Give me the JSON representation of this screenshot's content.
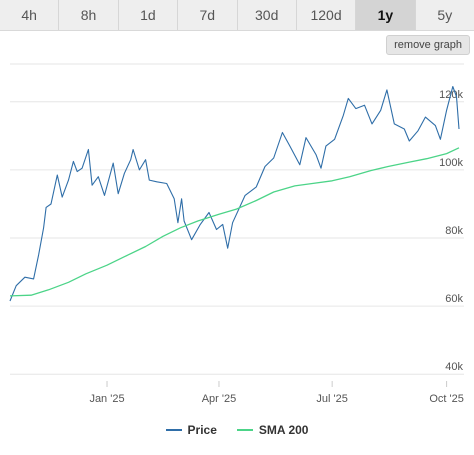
{
  "timeframe_tabs": [
    {
      "label": "4h",
      "active": false
    },
    {
      "label": "8h",
      "active": false
    },
    {
      "label": "1d",
      "active": false
    },
    {
      "label": "7d",
      "active": false
    },
    {
      "label": "30d",
      "active": false
    },
    {
      "label": "120d",
      "active": false
    },
    {
      "label": "1y",
      "active": true
    },
    {
      "label": "5y",
      "active": false
    }
  ],
  "remove_graph_label": "remove graph",
  "legend": {
    "price_label": "Price",
    "sma_label": "SMA 200"
  },
  "colors": {
    "price": "#2f6ea8",
    "sma": "#4cd488",
    "grid": "#e6e6e6",
    "axis_text": "#555555"
  },
  "chart_data": {
    "type": "line",
    "x_tick_labels": [
      "Jan '25",
      "Apr '25",
      "Jul '25",
      "Oct '25"
    ],
    "x_ticks": [
      "2025-01-01",
      "2025-04-01",
      "2025-07-01",
      "2025-10-01"
    ],
    "xlim": [
      "2024-10-15",
      "2025-10-15"
    ],
    "y_tick_labels": [
      "40k",
      "60k",
      "80k",
      "100k",
      "120k"
    ],
    "y_ticks": [
      40000,
      60000,
      80000,
      100000,
      120000
    ],
    "ylim": [
      38000,
      122000
    ],
    "grid": "horizontal",
    "legend_position": "bottom",
    "series": [
      {
        "name": "Price",
        "points": [
          [
            "2024-10-15",
            61500
          ],
          [
            "2024-10-20",
            66000
          ],
          [
            "2024-10-27",
            68500
          ],
          [
            "2024-11-03",
            68000
          ],
          [
            "2024-11-07",
            75000
          ],
          [
            "2024-11-11",
            83000
          ],
          [
            "2024-11-13",
            89000
          ],
          [
            "2024-11-17",
            90000
          ],
          [
            "2024-11-22",
            98500
          ],
          [
            "2024-11-26",
            92000
          ],
          [
            "2024-12-01",
            97000
          ],
          [
            "2024-12-05",
            102500
          ],
          [
            "2024-12-08",
            99500
          ],
          [
            "2024-12-12",
            100500
          ],
          [
            "2024-12-17",
            106000
          ],
          [
            "2024-12-20",
            95500
          ],
          [
            "2024-12-25",
            98000
          ],
          [
            "2024-12-30",
            92500
          ],
          [
            "2025-01-06",
            102000
          ],
          [
            "2025-01-10",
            93000
          ],
          [
            "2025-01-15",
            99000
          ],
          [
            "2025-01-20",
            103000
          ],
          [
            "2025-01-22",
            106000
          ],
          [
            "2025-01-27",
            100000
          ],
          [
            "2025-02-01",
            103000
          ],
          [
            "2025-02-04",
            97000
          ],
          [
            "2025-02-10",
            96500
          ],
          [
            "2025-02-18",
            96000
          ],
          [
            "2025-02-24",
            91500
          ],
          [
            "2025-02-27",
            84500
          ],
          [
            "2025-03-02",
            91500
          ],
          [
            "2025-03-04",
            85000
          ],
          [
            "2025-03-10",
            79500
          ],
          [
            "2025-03-17",
            84000
          ],
          [
            "2025-03-24",
            87500
          ],
          [
            "2025-03-30",
            82500
          ],
          [
            "2025-04-04",
            84000
          ],
          [
            "2025-04-08",
            77000
          ],
          [
            "2025-04-12",
            84500
          ],
          [
            "2025-04-22",
            92500
          ],
          [
            "2025-05-01",
            95000
          ],
          [
            "2025-05-08",
            101000
          ],
          [
            "2025-05-15",
            103500
          ],
          [
            "2025-05-22",
            111000
          ],
          [
            "2025-05-28",
            107000
          ],
          [
            "2025-06-05",
            101500
          ],
          [
            "2025-06-10",
            109500
          ],
          [
            "2025-06-18",
            104500
          ],
          [
            "2025-06-22",
            100500
          ],
          [
            "2025-06-26",
            107000
          ],
          [
            "2025-07-03",
            109000
          ],
          [
            "2025-07-10",
            116000
          ],
          [
            "2025-07-14",
            121000
          ],
          [
            "2025-07-20",
            118000
          ],
          [
            "2025-07-27",
            119000
          ],
          [
            "2025-08-02",
            113500
          ],
          [
            "2025-08-09",
            117500
          ],
          [
            "2025-08-14",
            123500
          ],
          [
            "2025-08-20",
            113500
          ],
          [
            "2025-08-28",
            112000
          ],
          [
            "2025-09-01",
            108500
          ],
          [
            "2025-09-08",
            111500
          ],
          [
            "2025-09-14",
            115500
          ],
          [
            "2025-09-22",
            113000
          ],
          [
            "2025-09-26",
            109000
          ],
          [
            "2025-10-01",
            117500
          ],
          [
            "2025-10-06",
            124500
          ],
          [
            "2025-10-09",
            121500
          ],
          [
            "2025-10-11",
            112000
          ]
        ]
      },
      {
        "name": "SMA 200",
        "points": [
          [
            "2024-10-15",
            63000
          ],
          [
            "2024-11-01",
            63200
          ],
          [
            "2024-11-15",
            64800
          ],
          [
            "2024-12-01",
            67000
          ],
          [
            "2024-12-15",
            69500
          ],
          [
            "2025-01-01",
            72000
          ],
          [
            "2025-01-15",
            74500
          ],
          [
            "2025-02-01",
            77500
          ],
          [
            "2025-02-15",
            80500
          ],
          [
            "2025-03-01",
            83000
          ],
          [
            "2025-03-15",
            85000
          ],
          [
            "2025-04-01",
            87000
          ],
          [
            "2025-04-15",
            88500
          ],
          [
            "2025-05-01",
            91000
          ],
          [
            "2025-05-15",
            93500
          ],
          [
            "2025-06-01",
            95300
          ],
          [
            "2025-06-15",
            96000
          ],
          [
            "2025-07-01",
            96800
          ],
          [
            "2025-07-15",
            98000
          ],
          [
            "2025-08-01",
            99800
          ],
          [
            "2025-08-15",
            101000
          ],
          [
            "2025-09-01",
            102300
          ],
          [
            "2025-09-15",
            103300
          ],
          [
            "2025-10-01",
            104800
          ],
          [
            "2025-10-11",
            106500
          ]
        ]
      }
    ]
  }
}
